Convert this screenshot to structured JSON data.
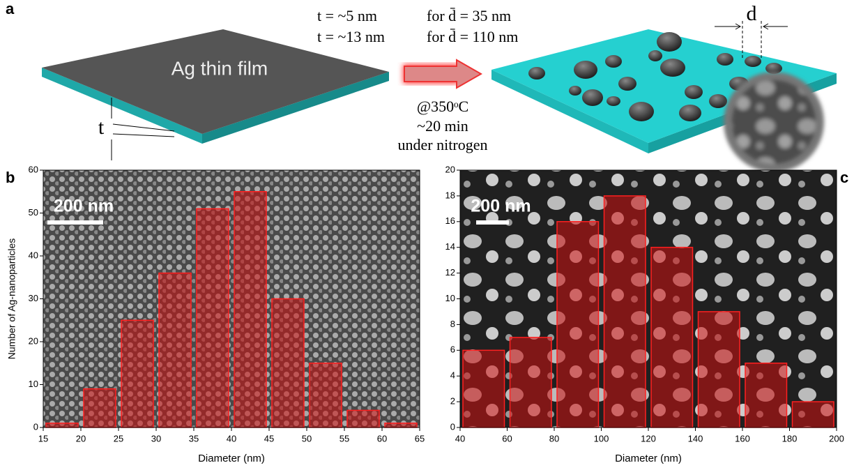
{
  "schematic": {
    "panel": "a",
    "film_label": "Ag thin film",
    "thickness_symbol": "t",
    "diameter_symbol": "d",
    "conditions": [
      [
        "t = ~5 nm",
        "for d̄ = 35 nm"
      ],
      [
        "t = ~13 nm",
        "for d̄ = 110 nm"
      ]
    ],
    "process": [
      "@350ᵒC",
      "~20 min",
      "under nitrogen"
    ]
  },
  "chart_data": [
    {
      "type": "histogram",
      "panel": "b",
      "xlabel": "Diameter (nm)",
      "ylabel": "Number of Ag-nanoparticles",
      "annotation": "200 nm",
      "bins": [
        15,
        20,
        25,
        30,
        35,
        40,
        45,
        50,
        55,
        60,
        65
      ],
      "values": [
        1,
        9,
        25,
        36,
        51,
        55,
        30,
        15,
        4,
        1
      ],
      "color": "#d01010",
      "xlim": [
        15,
        65
      ],
      "ylim": [
        0,
        60
      ],
      "xticks": [
        15,
        20,
        25,
        30,
        35,
        40,
        45,
        50,
        55,
        60,
        65
      ],
      "yticks": [
        0,
        10,
        20,
        30,
        40,
        50,
        60
      ]
    },
    {
      "type": "histogram",
      "panel": "c",
      "xlabel": "Diameter (nm)",
      "annotation": "200 nm",
      "bins": [
        40,
        60,
        80,
        100,
        120,
        140,
        160,
        180,
        200
      ],
      "values": [
        6,
        7,
        16,
        18,
        14,
        9,
        5,
        2
      ],
      "color": "#d01010",
      "xlim": [
        40,
        200
      ],
      "ylim": [
        0,
        20
      ],
      "xticks": [
        40,
        60,
        80,
        100,
        120,
        140,
        160,
        180,
        200
      ],
      "yticks": [
        0,
        2,
        4,
        6,
        8,
        10,
        12,
        14,
        16,
        18,
        20
      ]
    }
  ]
}
